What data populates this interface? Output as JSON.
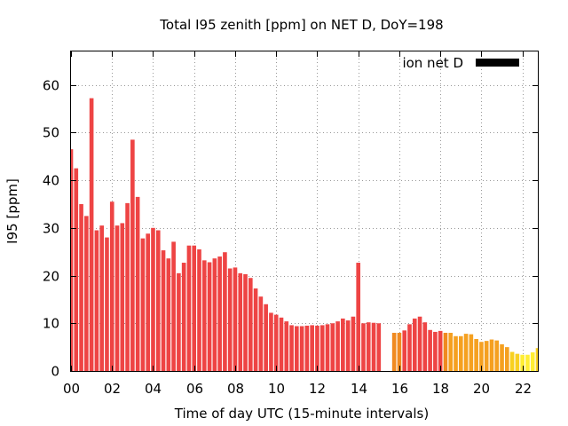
{
  "chart_data": {
    "type": "bar",
    "title": "Total I95 zenith [ppm] on NET D, DoY=198",
    "xlabel": "Time of day UTC (15-minute intervals)",
    "ylabel": "I95 [ppm]",
    "xlim": [
      0,
      22.75
    ],
    "ylim": [
      0,
      67
    ],
    "xticks": [
      "00",
      "02",
      "04",
      "06",
      "08",
      "10",
      "12",
      "14",
      "16",
      "18",
      "20",
      "22"
    ],
    "yticks": [
      "0",
      "10",
      "20",
      "30",
      "40",
      "50",
      "60"
    ],
    "grid": true,
    "legend": {
      "label": "ion net D",
      "position": "top-right",
      "color": "#000000"
    },
    "bar_width_hours": 0.2,
    "series": [
      {
        "x": [
          0.0,
          0.25,
          0.5,
          0.75,
          1.0,
          1.25,
          1.5,
          1.75,
          2.0,
          2.25,
          2.5,
          2.75,
          3.0,
          3.25,
          3.5,
          3.75,
          4.0,
          4.25,
          4.5,
          4.75,
          5.0,
          5.25,
          5.5,
          5.75,
          6.0,
          6.25,
          6.5,
          6.75,
          7.0,
          7.25,
          7.5,
          7.75,
          8.0,
          8.25,
          8.5,
          8.75,
          9.0,
          9.25,
          9.5,
          9.75,
          10.0,
          10.25,
          10.5,
          10.75,
          11.0,
          11.25,
          11.5,
          11.75,
          12.0,
          12.25,
          12.5,
          12.75,
          13.0,
          13.25,
          13.5,
          13.75,
          14.0,
          14.25,
          14.5,
          14.75,
          15.0,
          15.75,
          16.0,
          16.25,
          16.5,
          16.75,
          17.0,
          17.25,
          17.5,
          17.75,
          18.0,
          18.25,
          18.5,
          18.75,
          19.0,
          19.25,
          19.5,
          19.75,
          20.0,
          20.25,
          20.5,
          20.75,
          21.0,
          21.25,
          21.5,
          21.75,
          22.0,
          22.25,
          22.5,
          22.75
        ],
        "values": [
          46.5,
          42.5,
          35.0,
          32.5,
          57.2,
          29.5,
          30.5,
          28.0,
          35.5,
          30.5,
          31.0,
          35.2,
          48.5,
          36.5,
          27.8,
          28.8,
          30.0,
          29.5,
          25.3,
          23.6,
          27.1,
          20.5,
          22.7,
          26.3,
          26.3,
          25.5,
          23.2,
          22.8,
          23.6,
          24.0,
          24.9,
          21.5,
          21.7,
          20.5,
          20.3,
          19.5,
          17.3,
          15.6,
          14.0,
          12.2,
          11.8,
          11.2,
          10.4,
          9.6,
          9.4,
          9.4,
          9.5,
          9.6,
          9.5,
          9.6,
          9.8,
          10.0,
          10.4,
          11.0,
          10.6,
          11.4,
          22.7,
          10.0,
          10.2,
          10.1,
          10.0,
          8.0,
          8.0,
          8.5,
          9.8,
          11.0,
          11.4,
          10.2,
          8.6,
          8.2,
          8.4,
          8.0,
          8.0,
          7.3,
          7.3,
          7.8,
          7.7,
          6.7,
          6.1,
          6.3,
          6.6,
          6.4,
          5.6,
          5.0,
          4.0,
          3.6,
          3.4,
          3.4,
          3.9,
          4.8
        ],
        "colors": [
          "#ee4444",
          "#ee4444",
          "#ee4444",
          "#ee4444",
          "#ee4444",
          "#ee4444",
          "#ee4444",
          "#ee4444",
          "#ee4444",
          "#ee4444",
          "#ee4444",
          "#ee4444",
          "#ee4444",
          "#ee4444",
          "#ee4444",
          "#ee4444",
          "#ee4444",
          "#ee4444",
          "#ee4444",
          "#ee4444",
          "#ee4444",
          "#ee4444",
          "#ee4444",
          "#ee4444",
          "#ee4444",
          "#ee4444",
          "#ee4444",
          "#ee4444",
          "#ee4444",
          "#ee4444",
          "#ee4444",
          "#ee4444",
          "#ee4444",
          "#ee4444",
          "#ee4444",
          "#ee4444",
          "#ee4444",
          "#ee4444",
          "#ee4444",
          "#ee4444",
          "#ee4444",
          "#ee4444",
          "#ee4444",
          "#ee4444",
          "#ee4444",
          "#ee4444",
          "#ee4444",
          "#ee4444",
          "#ee4444",
          "#ee4444",
          "#ee4444",
          "#ee4444",
          "#ee4444",
          "#ee4444",
          "#ee4444",
          "#ee4444",
          "#ee4444",
          "#ee4444",
          "#ee4444",
          "#ee4444",
          "#ee4444",
          "#f08a20",
          "#f08a20",
          "#ee4444",
          "#ee4444",
          "#ee4444",
          "#ee4444",
          "#ee4444",
          "#ee4444",
          "#ee4444",
          "#ee4444",
          "#f08a20",
          "#f5a020",
          "#f5a020",
          "#f5a020",
          "#f5a020",
          "#f5a020",
          "#f5a020",
          "#f5a020",
          "#f5a020",
          "#f5a020",
          "#f5a020",
          "#f5a020",
          "#f5a020",
          "#f8d020",
          "#f8d020",
          "#ffee33",
          "#ffee33",
          "#ffee33",
          "#f8d020"
        ]
      }
    ]
  }
}
